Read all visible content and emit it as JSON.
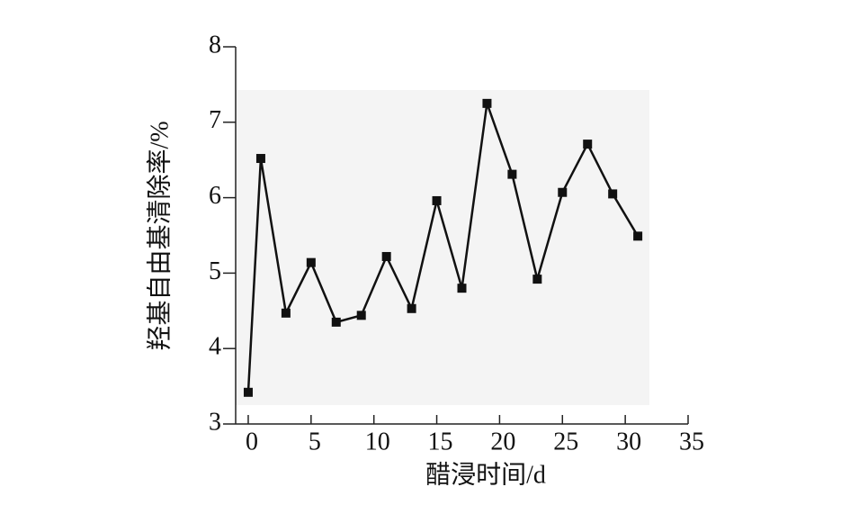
{
  "chart_data": {
    "type": "line",
    "x_label": "醋浸时间/d",
    "y_label": "羟基自由基清除率/%",
    "x": [
      0,
      1,
      3,
      5,
      7,
      9,
      11,
      13,
      15,
      17,
      19,
      21,
      23,
      25,
      27,
      29,
      31
    ],
    "series": [
      {
        "color": "#111111",
        "values": [
          3.42,
          6.52,
          4.47,
          5.14,
          4.35,
          4.44,
          5.22,
          4.53,
          5.96,
          4.8,
          7.25,
          6.31,
          4.92,
          6.07,
          6.71,
          6.05,
          5.49
        ]
      }
    ],
    "xlim": [
      -1,
      35
    ],
    "xticks": [
      0,
      5,
      10,
      15,
      20,
      25,
      30,
      35
    ],
    "ylim": [
      3,
      8
    ],
    "yticks": [
      3,
      4,
      5,
      6,
      7,
      8
    ],
    "grid": false
  }
}
